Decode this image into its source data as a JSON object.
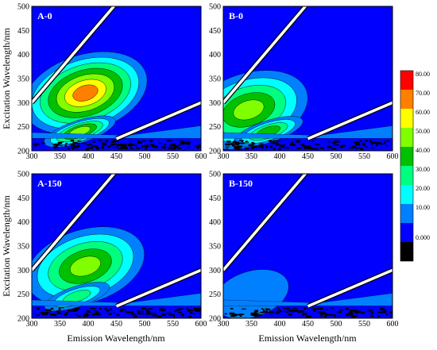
{
  "colors": {
    "bands": [
      "#000000",
      "#0000ff",
      "#0080ff",
      "#00ffff",
      "#00ff80",
      "#00c000",
      "#80ff00",
      "#ffff00",
      "#ff8000",
      "#ff0000"
    ],
    "scatter_band": "#00ffff",
    "rayleigh": "#ffffff"
  },
  "colorbar": {
    "ticks": [
      "80.00",
      "70.00",
      "60.00",
      "50.00",
      "40.00",
      "30.00",
      "20.00",
      "10.00",
      "0.000"
    ]
  },
  "chart_data": [
    {
      "type": "heatmap",
      "panel_label": "A-0",
      "xlabel": "",
      "ylabel": "Excitation Wavelength/nm",
      "xlim": [
        300,
        600
      ],
      "ylim": [
        200,
        500
      ],
      "xticks": [
        "300",
        "350",
        "400",
        "450",
        "500",
        "550",
        "600"
      ],
      "yticks": [
        "200",
        "250",
        "300",
        "350",
        "400",
        "450",
        "500"
      ],
      "peaks": [
        {
          "ex": 320,
          "em": 395,
          "intensity": 80
        },
        {
          "ex": 240,
          "em": 385,
          "intensity": 55
        }
      ]
    },
    {
      "type": "heatmap",
      "panel_label": "B-0",
      "xlabel": "",
      "ylabel": "",
      "xlim": [
        300,
        600
      ],
      "ylim": [
        200,
        500
      ],
      "xticks": [
        "300",
        "350",
        "400",
        "450",
        "500",
        "550",
        "600"
      ],
      "yticks": [
        "200",
        "250",
        "300",
        "350",
        "400",
        "450",
        "500"
      ],
      "peaks": [
        {
          "ex": 285,
          "em": 345,
          "intensity": 60
        },
        {
          "ex": 240,
          "em": 380,
          "intensity": 45
        }
      ]
    },
    {
      "type": "heatmap",
      "panel_label": "A-150",
      "xlabel": "Emission Wavelength/nm",
      "ylabel": "Excitation Wavelength/nm",
      "xlim": [
        300,
        600
      ],
      "ylim": [
        200,
        500
      ],
      "xticks": [
        "300",
        "350",
        "400",
        "450",
        "500",
        "550",
        "600"
      ],
      "yticks": [
        "200",
        "250",
        "300",
        "350",
        "400",
        "450",
        "500"
      ],
      "peaks": [
        {
          "ex": 308,
          "em": 395,
          "intensity": 55
        },
        {
          "ex": 245,
          "em": 380,
          "intensity": 35
        }
      ]
    },
    {
      "type": "heatmap",
      "panel_label": "B-150",
      "xlabel": "Emission Wavelength/nm",
      "ylabel": "",
      "xlim": [
        300,
        600
      ],
      "ylim": [
        200,
        500
      ],
      "xticks": [
        "300",
        "350",
        "400",
        "450",
        "500",
        "550",
        "600"
      ],
      "yticks": [
        "200",
        "250",
        "300",
        "350",
        "400",
        "450",
        "500"
      ],
      "peaks": [
        {
          "ex": 250,
          "em": 350,
          "intensity": 20
        }
      ]
    }
  ]
}
